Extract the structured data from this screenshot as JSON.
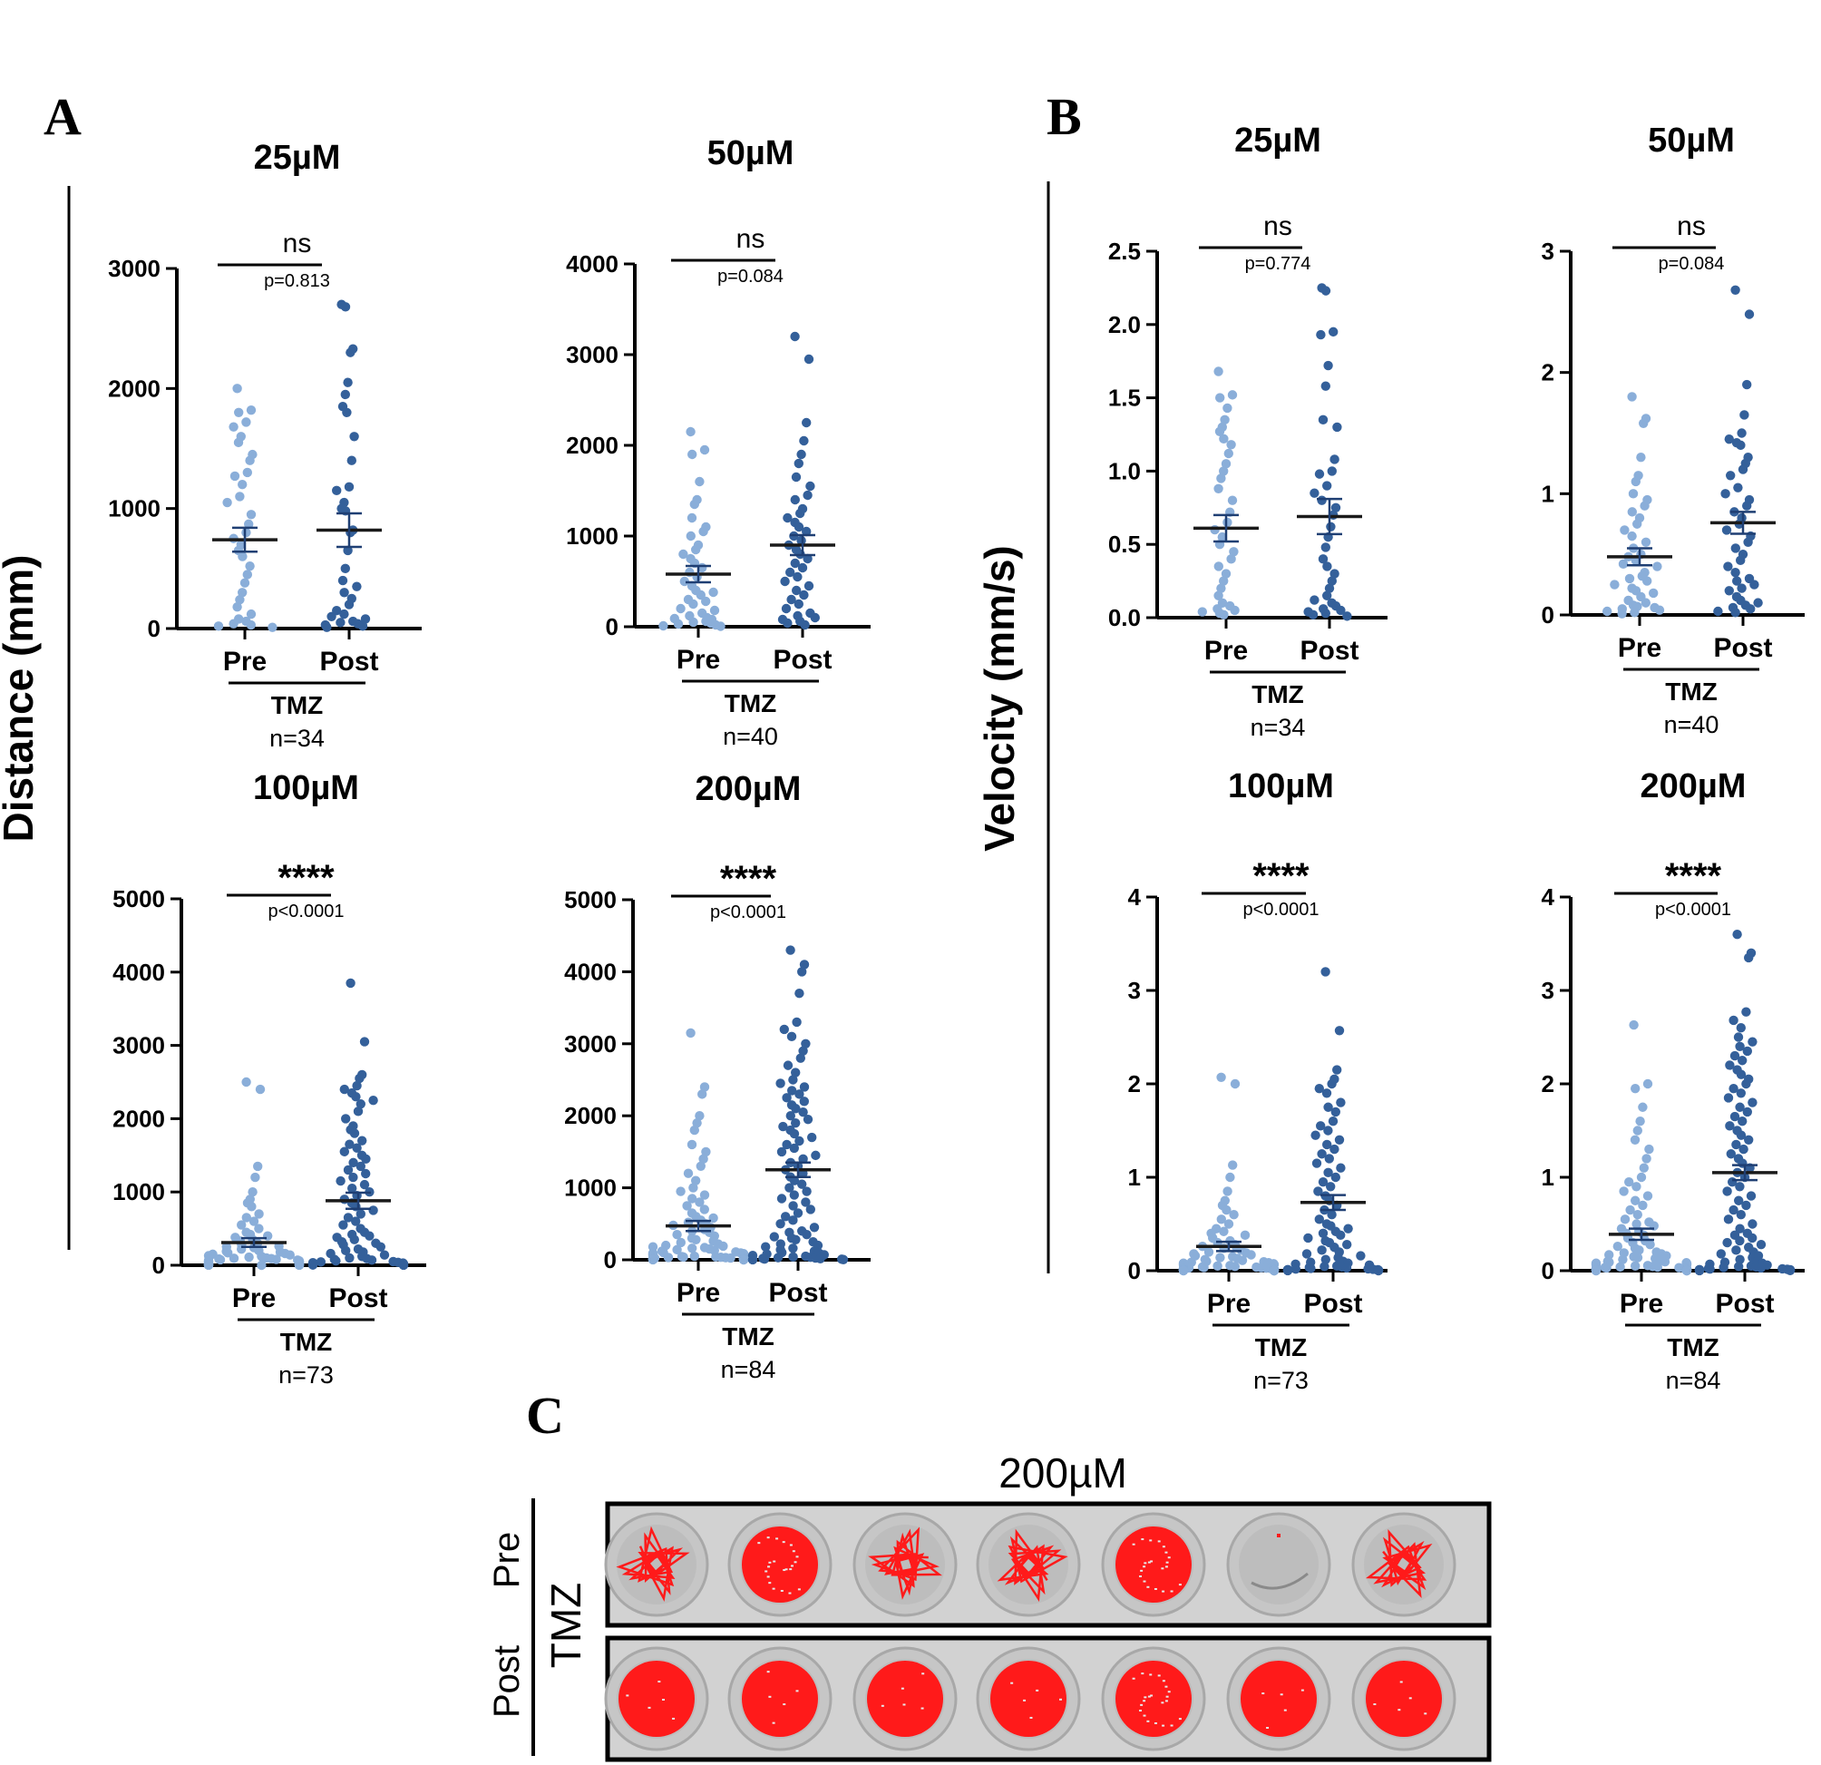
{
  "panels": {
    "A": {
      "letter": "A",
      "ylabel": "Distance (mm)"
    },
    "B": {
      "letter": "B",
      "ylabel": "Velocity (mm/s)"
    },
    "C": {
      "letter": "C",
      "title": "200µM",
      "row_pre": "Pre",
      "row_post": "Post",
      "group": "TMZ"
    }
  },
  "colors": {
    "pre": "#8aaed9",
    "post": "#34609a",
    "track": "#ff1a1a"
  },
  "chart_data": [
    {
      "id": "A1",
      "type": "scatter",
      "title": "25µM",
      "ylim": [
        0,
        3000
      ],
      "ticks": [
        0,
        1000,
        2000,
        3000
      ],
      "categories": [
        "Pre",
        "Post"
      ],
      "group": "TMZ",
      "n": "n=34",
      "sig": "ns",
      "pval": "p=0.813",
      "pre": {
        "mean": 740,
        "sem": 100,
        "values": [
          2000,
          1820,
          1800,
          1720,
          1680,
          1600,
          1550,
          1450,
          1400,
          1300,
          1270,
          1200,
          1100,
          1050,
          950,
          870,
          800,
          750,
          700,
          650,
          600,
          520,
          450,
          380,
          300,
          240,
          180,
          120,
          80,
          60,
          40,
          30,
          20,
          10
        ]
      },
      "post": {
        "mean": 820,
        "sem": 140,
        "values": [
          2700,
          2680,
          2330,
          2300,
          2050,
          1950,
          1850,
          1800,
          1600,
          1400,
          1180,
          1150,
          1050,
          1000,
          980,
          820,
          800,
          650,
          500,
          400,
          350,
          300,
          250,
          200,
          150,
          120,
          100,
          80,
          60,
          50,
          40,
          30,
          20,
          10
        ]
      }
    },
    {
      "id": "A2",
      "type": "scatter",
      "title": "50µM",
      "ylim": [
        0,
        4000
      ],
      "ticks": [
        0,
        1000,
        2000,
        3000,
        4000
      ],
      "categories": [
        "Pre",
        "Post"
      ],
      "group": "TMZ",
      "n": "n=40",
      "sig": "ns",
      "pval": "p=0.084",
      "pre": {
        "mean": 580,
        "sem": 90,
        "values": [
          2150,
          1950,
          1900,
          1600,
          1400,
          1350,
          1200,
          1100,
          1050,
          1000,
          900,
          850,
          800,
          750,
          700,
          650,
          600,
          550,
          500,
          450,
          400,
          380,
          350,
          300,
          280,
          250,
          200,
          180,
          150,
          120,
          100,
          90,
          80,
          60,
          50,
          40,
          30,
          20,
          10,
          5
        ]
      },
      "post": {
        "mean": 900,
        "sem": 110,
        "values": [
          3200,
          2950,
          2250,
          2050,
          1900,
          1800,
          1650,
          1550,
          1450,
          1400,
          1300,
          1250,
          1200,
          1150,
          1100,
          1050,
          1000,
          950,
          900,
          850,
          800,
          750,
          700,
          650,
          600,
          550,
          500,
          450,
          400,
          350,
          300,
          250,
          200,
          150,
          120,
          100,
          80,
          60,
          40,
          20
        ]
      }
    },
    {
      "id": "A3",
      "type": "scatter",
      "title": "100µM",
      "ylim": [
        0,
        5000
      ],
      "ticks": [
        0,
        1000,
        2000,
        3000,
        4000,
        5000
      ],
      "categories": [
        "Pre",
        "Post"
      ],
      "group": "TMZ",
      "n": "n=73",
      "sig": "****",
      "pval": "p<0.0001",
      "pre": {
        "mean": 310,
        "sem": 60,
        "values": [
          2500,
          2400,
          1350,
          1200,
          1000,
          900,
          850,
          800,
          700,
          650,
          600,
          550,
          500,
          450,
          420,
          400,
          380,
          350,
          330,
          300,
          280,
          260,
          250,
          240,
          220,
          200,
          190,
          180,
          170,
          160,
          150,
          140,
          130,
          120,
          110,
          100,
          95,
          90,
          85,
          80,
          75,
          70,
          65,
          60,
          55,
          50,
          45,
          40,
          38,
          35,
          32,
          30,
          28,
          25,
          22,
          20,
          18,
          16,
          14,
          12,
          10,
          9,
          8,
          7,
          6,
          5,
          4,
          3,
          2,
          2,
          1,
          1,
          0
        ]
      },
      "post": {
        "mean": 880,
        "sem": 110,
        "values": [
          3850,
          3050,
          2600,
          2550,
          2450,
          2400,
          2350,
          2300,
          2250,
          2200,
          2100,
          2000,
          1900,
          1850,
          1800,
          1700,
          1650,
          1600,
          1550,
          1500,
          1450,
          1400,
          1350,
          1300,
          1250,
          1200,
          1150,
          1100,
          1050,
          1000,
          950,
          900,
          850,
          800,
          750,
          700,
          650,
          600,
          550,
          500,
          450,
          420,
          400,
          380,
          350,
          320,
          300,
          280,
          250,
          220,
          200,
          180,
          160,
          140,
          120,
          100,
          90,
          80,
          70,
          60,
          50,
          45,
          40,
          35,
          30,
          25,
          20,
          15,
          10,
          8,
          5,
          3,
          1
        ]
      }
    },
    {
      "id": "A4",
      "type": "scatter",
      "title": "200µM",
      "ylim": [
        0,
        5000
      ],
      "ticks": [
        0,
        1000,
        2000,
        3000,
        4000,
        5000
      ],
      "categories": [
        "Pre",
        "Post"
      ],
      "group": "TMZ",
      "n": "n=84",
      "sig": "****",
      "pval": "p<0.0001",
      "pre": {
        "mean": 470,
        "sem": 70,
        "values": [
          3150,
          2400,
          2300,
          2000,
          1900,
          1800,
          1600,
          1500,
          1400,
          1300,
          1200,
          1100,
          1000,
          950,
          900,
          850,
          800,
          750,
          700,
          650,
          600,
          580,
          550,
          520,
          500,
          480,
          450,
          420,
          400,
          380,
          350,
          330,
          300,
          280,
          260,
          240,
          220,
          200,
          190,
          180,
          170,
          160,
          150,
          140,
          130,
          120,
          110,
          100,
          95,
          90,
          85,
          80,
          75,
          70,
          65,
          60,
          55,
          50,
          45,
          40,
          38,
          35,
          32,
          30,
          28,
          25,
          22,
          20,
          18,
          16,
          14,
          12,
          10,
          9,
          8,
          7,
          6,
          5,
          4,
          3,
          2,
          1,
          1,
          0
        ]
      },
      "post": {
        "mean": 1250,
        "sem": 100,
        "values": [
          4300,
          4100,
          4000,
          3700,
          3300,
          3200,
          3100,
          3000,
          2900,
          2800,
          2700,
          2600,
          2500,
          2450,
          2400,
          2350,
          2300,
          2250,
          2200,
          2150,
          2100,
          2050,
          2000,
          1950,
          1900,
          1850,
          1800,
          1750,
          1700,
          1650,
          1600,
          1550,
          1500,
          1450,
          1400,
          1350,
          1300,
          1250,
          1200,
          1150,
          1100,
          1050,
          1000,
          950,
          900,
          850,
          800,
          750,
          700,
          650,
          600,
          550,
          500,
          450,
          400,
          380,
          350,
          320,
          300,
          280,
          250,
          220,
          200,
          180,
          160,
          140,
          120,
          100,
          90,
          80,
          70,
          60,
          50,
          40,
          35,
          30,
          25,
          20,
          15,
          10,
          8,
          5,
          3,
          1
        ]
      }
    },
    {
      "id": "B1",
      "type": "scatter",
      "title": "25µM",
      "ylim": [
        0,
        2.5
      ],
      "ticks": [
        "0.0",
        "0.5",
        "1.0",
        "1.5",
        "2.0",
        "2.5"
      ],
      "categories": [
        "Pre",
        "Post"
      ],
      "group": "TMZ",
      "n": "n=34",
      "sig": "ns",
      "pval": "p=0.774",
      "pre": {
        "mean": 0.61,
        "sem": 0.09,
        "values": [
          1.68,
          1.52,
          1.5,
          1.43,
          1.35,
          1.3,
          1.27,
          1.22,
          1.18,
          1.12,
          1.05,
          1.0,
          0.95,
          0.88,
          0.8,
          0.72,
          0.65,
          0.6,
          0.55,
          0.5,
          0.45,
          0.4,
          0.35,
          0.3,
          0.25,
          0.2,
          0.15,
          0.1,
          0.08,
          0.06,
          0.05,
          0.04,
          0.03,
          0.02
        ]
      },
      "post": {
        "mean": 0.69,
        "sem": 0.12,
        "values": [
          2.25,
          2.23,
          1.95,
          1.93,
          1.72,
          1.58,
          1.35,
          1.3,
          1.08,
          1.0,
          0.98,
          0.9,
          0.85,
          0.8,
          0.75,
          0.7,
          0.62,
          0.55,
          0.48,
          0.4,
          0.35,
          0.3,
          0.25,
          0.2,
          0.15,
          0.12,
          0.1,
          0.08,
          0.06,
          0.05,
          0.04,
          0.03,
          0.02,
          0.01
        ]
      }
    },
    {
      "id": "B2",
      "type": "scatter",
      "title": "50µM",
      "ylim": [
        0,
        3
      ],
      "ticks": [
        0,
        1,
        2,
        3
      ],
      "categories": [
        "Pre",
        "Post"
      ],
      "group": "TMZ",
      "n": "n=40",
      "sig": "ns",
      "pval": "p=0.084",
      "pre": {
        "mean": 0.48,
        "sem": 0.07,
        "values": [
          1.8,
          1.62,
          1.58,
          1.3,
          1.15,
          1.1,
          1.0,
          0.95,
          0.9,
          0.85,
          0.8,
          0.75,
          0.7,
          0.65,
          0.6,
          0.55,
          0.5,
          0.48,
          0.45,
          0.42,
          0.4,
          0.35,
          0.32,
          0.3,
          0.28,
          0.25,
          0.22,
          0.2,
          0.18,
          0.15,
          0.12,
          0.1,
          0.08,
          0.07,
          0.06,
          0.05,
          0.04,
          0.03,
          0.02,
          0.01
        ]
      },
      "post": {
        "mean": 0.76,
        "sem": 0.09,
        "values": [
          2.68,
          2.48,
          1.9,
          1.65,
          1.5,
          1.45,
          1.42,
          1.4,
          1.3,
          1.25,
          1.2,
          1.15,
          1.05,
          1.0,
          0.95,
          0.9,
          0.85,
          0.8,
          0.75,
          0.7,
          0.65,
          0.6,
          0.55,
          0.5,
          0.45,
          0.4,
          0.35,
          0.3,
          0.28,
          0.25,
          0.22,
          0.2,
          0.15,
          0.12,
          0.1,
          0.08,
          0.06,
          0.05,
          0.03,
          0.02
        ]
      }
    },
    {
      "id": "B3",
      "type": "scatter",
      "title": "100µM",
      "ylim": [
        0,
        4
      ],
      "ticks": [
        0,
        1,
        2,
        3,
        4
      ],
      "categories": [
        "Pre",
        "Post"
      ],
      "group": "TMZ",
      "n": "n=73",
      "sig": "****",
      "pval": "p<0.0001",
      "pre": {
        "mean": 0.26,
        "sem": 0.05,
        "values": [
          2.07,
          2.0,
          1.13,
          1.0,
          0.85,
          0.75,
          0.7,
          0.65,
          0.6,
          0.55,
          0.5,
          0.45,
          0.42,
          0.4,
          0.38,
          0.35,
          0.32,
          0.3,
          0.28,
          0.26,
          0.25,
          0.24,
          0.22,
          0.2,
          0.19,
          0.18,
          0.17,
          0.16,
          0.15,
          0.14,
          0.13,
          0.12,
          0.11,
          0.1,
          0.095,
          0.09,
          0.085,
          0.08,
          0.075,
          0.07,
          0.065,
          0.06,
          0.055,
          0.05,
          0.045,
          0.04,
          0.038,
          0.035,
          0.032,
          0.03,
          0.028,
          0.025,
          0.022,
          0.02,
          0.018,
          0.016,
          0.014,
          0.012,
          0.01,
          0.009,
          0.008,
          0.007,
          0.006,
          0.005,
          0.004,
          0.003,
          0.002,
          0.002,
          0.001,
          0.001,
          0.0,
          0.0,
          0.0
        ]
      },
      "post": {
        "mean": 0.73,
        "sem": 0.08,
        "values": [
          3.2,
          2.57,
          2.15,
          2.05,
          2.0,
          1.95,
          1.9,
          1.8,
          1.75,
          1.7,
          1.6,
          1.55,
          1.5,
          1.45,
          1.4,
          1.35,
          1.3,
          1.25,
          1.2,
          1.15,
          1.1,
          1.05,
          1.0,
          0.95,
          0.9,
          0.85,
          0.8,
          0.75,
          0.7,
          0.65,
          0.6,
          0.55,
          0.5,
          0.48,
          0.45,
          0.42,
          0.4,
          0.38,
          0.35,
          0.32,
          0.3,
          0.28,
          0.25,
          0.22,
          0.2,
          0.18,
          0.16,
          0.14,
          0.12,
          0.1,
          0.09,
          0.08,
          0.07,
          0.06,
          0.05,
          0.045,
          0.04,
          0.035,
          0.03,
          0.025,
          0.02,
          0.018,
          0.015,
          0.012,
          0.01,
          0.008,
          0.006,
          0.005,
          0.004,
          0.003,
          0.002,
          0.001,
          0.0
        ]
      }
    },
    {
      "id": "B4",
      "type": "scatter",
      "title": "200µM",
      "ylim": [
        0,
        4
      ],
      "ticks": [
        0,
        1,
        2,
        3,
        4
      ],
      "categories": [
        "Pre",
        "Post"
      ],
      "group": "TMZ",
      "n": "n=84",
      "sig": "****",
      "pval": "p<0.0001",
      "pre": {
        "mean": 0.39,
        "sem": 0.06,
        "values": [
          2.63,
          2.0,
          1.95,
          1.75,
          1.6,
          1.5,
          1.4,
          1.3,
          1.2,
          1.1,
          1.0,
          0.95,
          0.9,
          0.85,
          0.8,
          0.75,
          0.7,
          0.65,
          0.6,
          0.55,
          0.52,
          0.5,
          0.48,
          0.45,
          0.42,
          0.4,
          0.38,
          0.35,
          0.32,
          0.3,
          0.28,
          0.26,
          0.24,
          0.22,
          0.2,
          0.19,
          0.18,
          0.17,
          0.16,
          0.15,
          0.14,
          0.13,
          0.12,
          0.11,
          0.1,
          0.095,
          0.09,
          0.085,
          0.08,
          0.075,
          0.07,
          0.065,
          0.06,
          0.055,
          0.05,
          0.045,
          0.04,
          0.038,
          0.035,
          0.032,
          0.03,
          0.028,
          0.025,
          0.022,
          0.02,
          0.018,
          0.016,
          0.014,
          0.012,
          0.01,
          0.009,
          0.008,
          0.007,
          0.006,
          0.005,
          0.004,
          0.003,
          0.002,
          0.002,
          0.001,
          0.001,
          0.0,
          0.0,
          0.0
        ]
      },
      "post": {
        "mean": 1.05,
        "sem": 0.08,
        "values": [
          3.6,
          3.4,
          3.35,
          2.77,
          2.68,
          2.6,
          2.5,
          2.45,
          2.4,
          2.35,
          2.3,
          2.25,
          2.2,
          2.15,
          2.1,
          2.05,
          2.0,
          1.95,
          1.9,
          1.85,
          1.8,
          1.75,
          1.7,
          1.65,
          1.6,
          1.55,
          1.5,
          1.45,
          1.4,
          1.35,
          1.3,
          1.25,
          1.2,
          1.15,
          1.1,
          1.05,
          1.0,
          0.95,
          0.9,
          0.85,
          0.8,
          0.75,
          0.7,
          0.65,
          0.6,
          0.55,
          0.5,
          0.45,
          0.4,
          0.38,
          0.35,
          0.32,
          0.3,
          0.28,
          0.25,
          0.22,
          0.2,
          0.18,
          0.16,
          0.14,
          0.12,
          0.1,
          0.09,
          0.08,
          0.07,
          0.06,
          0.05,
          0.045,
          0.04,
          0.035,
          0.03,
          0.025,
          0.02,
          0.018,
          0.015,
          0.012,
          0.01,
          0.008,
          0.006,
          0.005,
          0.004,
          0.003,
          0.002,
          0.001
        ]
      }
    }
  ]
}
